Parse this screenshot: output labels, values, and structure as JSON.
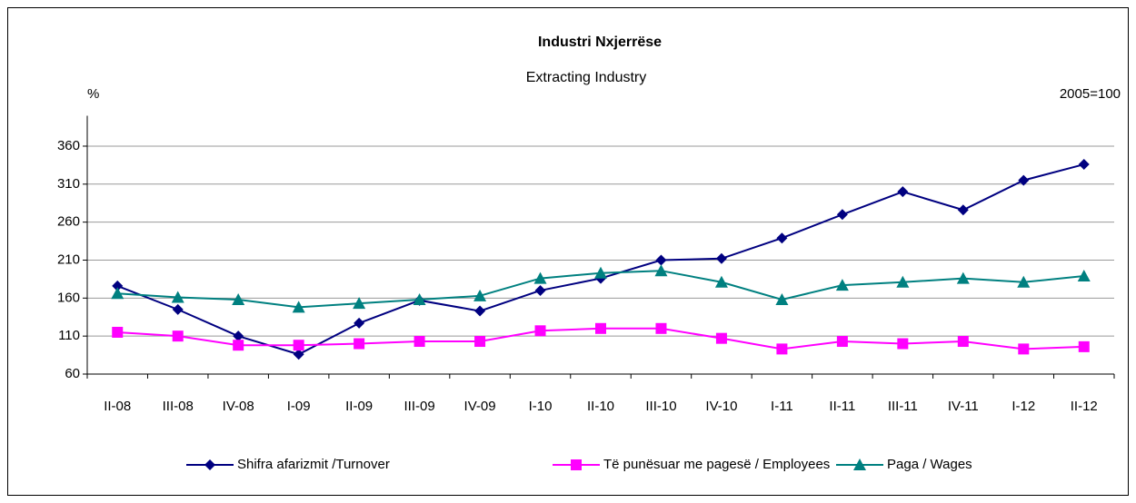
{
  "chart_data": {
    "type": "line",
    "title": "Industri Nxjerrëse",
    "subtitle": "Extracting Industry",
    "y_label": "%",
    "note": "2005=100",
    "categories": [
      "II-08",
      "III-08",
      "IV-08",
      "I-09",
      "II-09",
      "III-09",
      "IV-09",
      "I-10",
      "II-10",
      "III-10",
      "IV-10",
      "I-11",
      "II-11",
      "III-11",
      "IV-11",
      "I-12",
      "II-12"
    ],
    "series": [
      {
        "name": "Shifra afarizmit /Turnover",
        "color": "#000080",
        "marker": "diamond",
        "values": [
          176,
          145,
          110,
          86,
          127,
          157,
          143,
          170,
          186,
          210,
          212,
          239,
          270,
          300,
          276,
          315,
          336
        ]
      },
      {
        "name": "Të punësuar me pagesë / Employees",
        "color": "#ff00ff",
        "marker": "square",
        "values": [
          115,
          110,
          98,
          98,
          100,
          103,
          103,
          117,
          120,
          120,
          107,
          93,
          103,
          100,
          103,
          93,
          96
        ]
      },
      {
        "name": "Paga / Wages",
        "color": "#008080",
        "marker": "triangle",
        "values": [
          166,
          161,
          158,
          148,
          153,
          158,
          163,
          186,
          193,
          196,
          181,
          158,
          177,
          181,
          186,
          181,
          189
        ]
      }
    ],
    "ylim": [
      60,
      400
    ],
    "yticks": [
      60,
      110,
      160,
      210,
      260,
      310,
      360
    ],
    "grid": true
  }
}
